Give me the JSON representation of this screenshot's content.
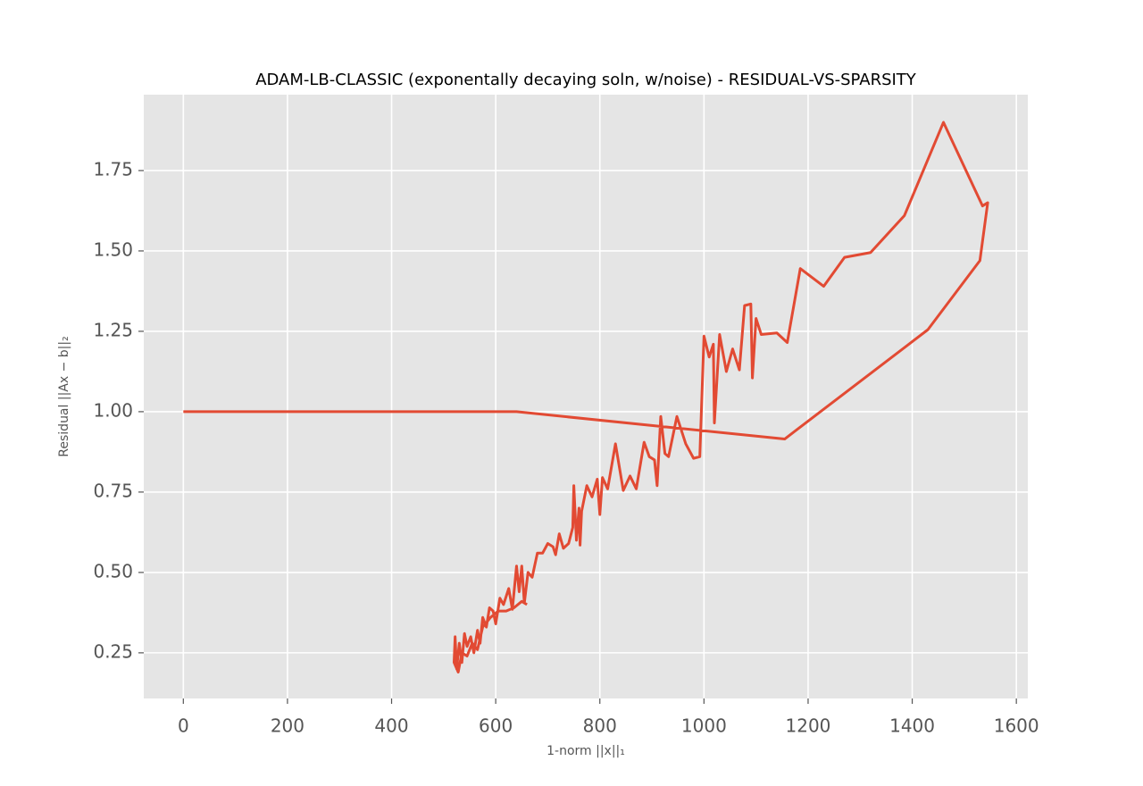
{
  "chart_data": {
    "type": "line",
    "title": "ADAM-LB-CLASSIC (exponentally decaying soln, w/noise) - RESIDUAL-VS-SPARSITY",
    "x_label": "1-norm ||x||₁",
    "y_label": "Residual ||Ax − b||₂",
    "xlim": [
      -76,
      1622
    ],
    "ylim": [
      0.108,
      1.986
    ],
    "xticks": [
      0,
      200,
      400,
      600,
      800,
      1000,
      1200,
      1400,
      1600
    ],
    "yticks": [
      0.25,
      {
        "value": 0.5,
        "label": "0.50"
      },
      0.75,
      {
        "value": 1.0,
        "label": "1.00"
      },
      1.25,
      {
        "value": 1.5,
        "label": "1.50"
      },
      1.75
    ],
    "grid": true,
    "series": [
      {
        "color": "#e24a33",
        "x": [
          0,
          640,
          1155,
          1430,
          1530,
          1545,
          1535,
          1460,
          1385,
          1320,
          1270,
          1230,
          1185,
          1160,
          1140,
          1110,
          1100,
          1093,
          1090,
          1078,
          1068,
          1055,
          1043,
          1030,
          1020,
          1018,
          1010,
          1000,
          992,
          980,
          965,
          948,
          932,
          925,
          917,
          910,
          905,
          895,
          885,
          870,
          858,
          845,
          830,
          815,
          805,
          800,
          795,
          785,
          775,
          765,
          762,
          760,
          755,
          750,
          748,
          740,
          730,
          722,
          715,
          710,
          700,
          690,
          680,
          670,
          662,
          655,
          650,
          645,
          640,
          632,
          625,
          615,
          608,
          600,
          595,
          588,
          582,
          575,
          570,
          565,
          558,
          552,
          545,
          540,
          535,
          530,
          525,
          522,
          520,
          528,
          535,
          545,
          555,
          565,
          575,
          590,
          605,
          620,
          635,
          650,
          660
        ],
        "values": [
          1.0,
          1.0,
          0.915,
          1.255,
          1.47,
          1.65,
          1.64,
          1.9,
          1.61,
          1.495,
          1.48,
          1.39,
          1.445,
          1.215,
          1.245,
          1.24,
          1.29,
          1.105,
          1.335,
          1.33,
          1.13,
          1.195,
          1.125,
          1.24,
          0.965,
          1.21,
          1.17,
          1.235,
          0.86,
          0.855,
          0.9,
          0.985,
          0.86,
          0.87,
          0.985,
          0.77,
          0.85,
          0.86,
          0.905,
          0.76,
          0.8,
          0.755,
          0.9,
          0.76,
          0.795,
          0.68,
          0.79,
          0.735,
          0.77,
          0.69,
          0.585,
          0.7,
          0.6,
          0.77,
          0.64,
          0.59,
          0.575,
          0.62,
          0.555,
          0.58,
          0.59,
          0.56,
          0.56,
          0.485,
          0.5,
          0.405,
          0.52,
          0.44,
          0.52,
          0.385,
          0.45,
          0.4,
          0.42,
          0.34,
          0.38,
          0.39,
          0.33,
          0.36,
          0.28,
          0.32,
          0.25,
          0.3,
          0.27,
          0.31,
          0.22,
          0.28,
          0.2,
          0.3,
          0.22,
          0.19,
          0.25,
          0.24,
          0.28,
          0.26,
          0.33,
          0.36,
          0.38,
          0.38,
          0.39,
          0.41,
          0.4
        ]
      }
    ]
  }
}
